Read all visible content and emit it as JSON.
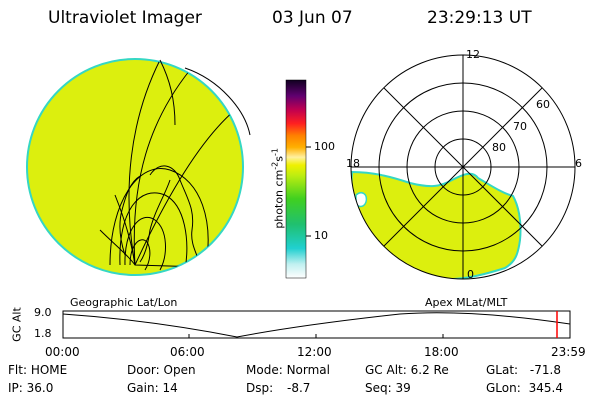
{
  "header": {
    "instrument": "Ultraviolet Imager",
    "date": "03 Jun 07",
    "time": "23:29:13 UT"
  },
  "colors": {
    "aurora_fill": "#dcef0e",
    "aurora_edge": "#35d7c4",
    "background": "#ffffff",
    "line": "#000000",
    "time_marker": "#ff0000"
  },
  "left_panel": {
    "caption": "Geographic Lat/Lon"
  },
  "right_panel": {
    "caption": "Apex MLat/MLT",
    "mlt_labels": {
      "top": "12",
      "left": "18",
      "right": "6",
      "bottom": "0"
    },
    "lat_labels": [
      "60",
      "70",
      "80"
    ]
  },
  "colorbar": {
    "label": "photon cm",
    "unit_exp1": "-2",
    "unit_mid": "s",
    "unit_exp2": "-1",
    "ticks": [
      "100",
      "10"
    ],
    "scale": "log"
  },
  "alt_plot": {
    "axis_label": "GC Alt",
    "ymax": "9.0",
    "ymin": "1.8",
    "x_ticks": [
      "00:00",
      "06:00",
      "12:00",
      "18:00",
      "23:59"
    ]
  },
  "info": {
    "flt_label": "Flt:",
    "flt_value": "HOME",
    "ip_label": "IP:",
    "ip_value": "36.0",
    "door_label": "Door:",
    "door_value": "Open",
    "gain_label": "Gain:",
    "gain_value": "14",
    "mode_label": "Mode:",
    "mode_value": "Normal",
    "dsp_label": "Dsp:",
    "dsp_value": "-8.7",
    "gcalt_label": "GC Alt:",
    "gcalt_value": "6.2 Re",
    "seq_label": "Seq:",
    "seq_value": "39",
    "glat_label": "GLat:",
    "glat_value": "-71.8",
    "glon_label": "GLon:",
    "glon_value": "345.4"
  }
}
